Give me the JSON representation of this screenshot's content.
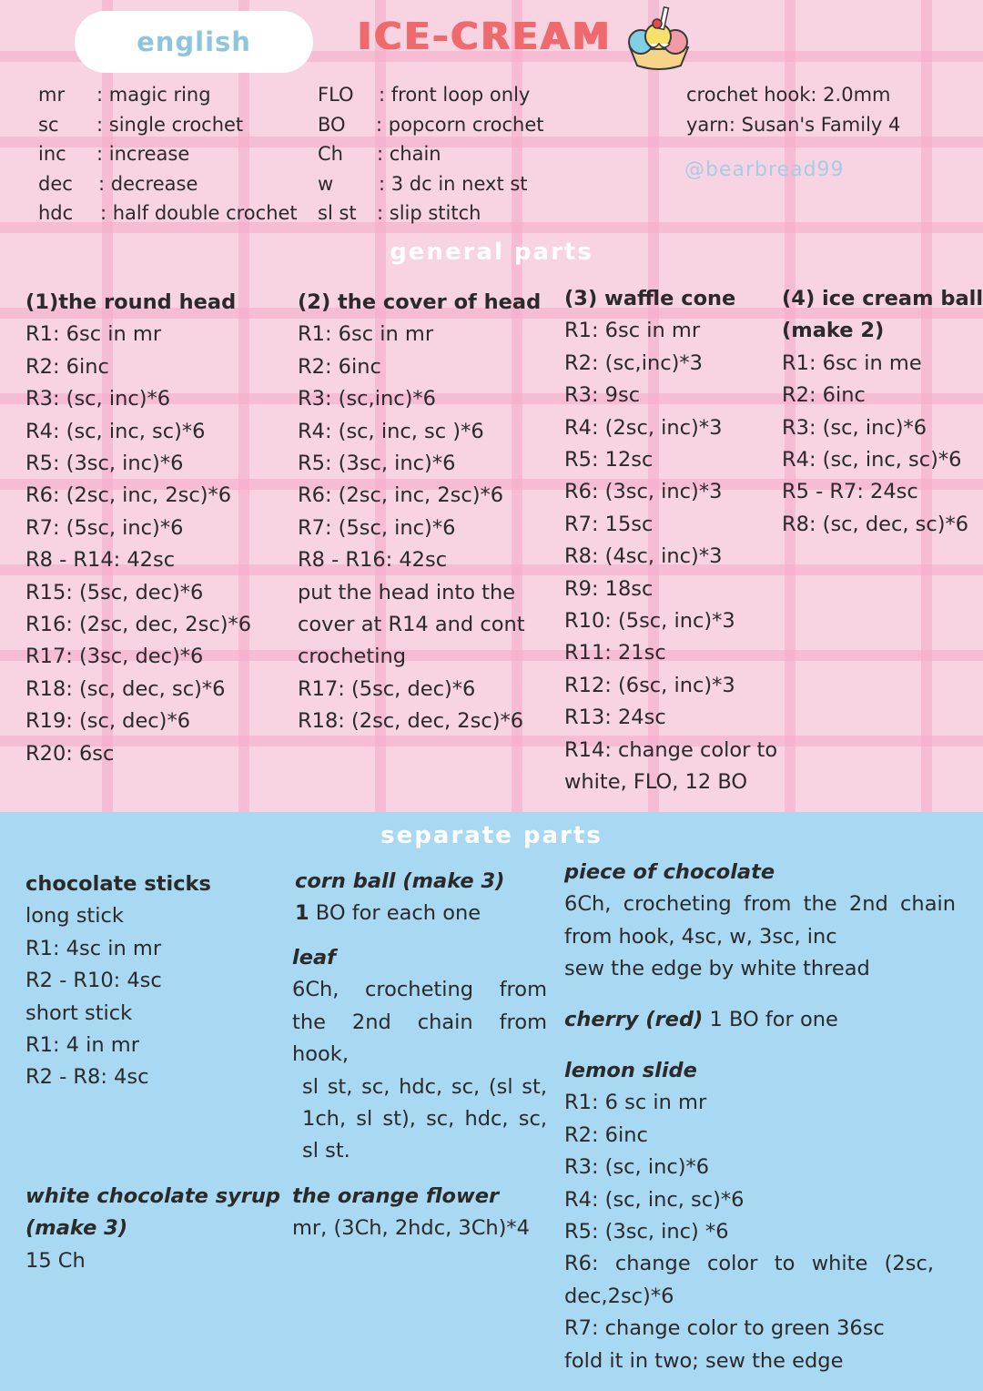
{
  "header": {
    "language": "english",
    "title": "ICE-CREAM",
    "logo_icon": "ice-cream-sundae-icon"
  },
  "abbreviations_left": [
    {
      "key": "mr",
      "value": ": magic ring"
    },
    {
      "key": "sc",
      "value": ": single crochet"
    },
    {
      "key": "inc",
      "value": ": increase"
    },
    {
      "key": "dec",
      "value": ": decrease"
    },
    {
      "key": "hdc",
      "value": ": half double crochet"
    }
  ],
  "abbreviations_right": [
    {
      "key": "FLO",
      "value": ": front loop only"
    },
    {
      "key": "BO",
      "value": ": popcorn crochet"
    },
    {
      "key": "Ch",
      "value": ": chain"
    },
    {
      "key": "w",
      "value": ": 3 dc in next st"
    },
    {
      "key": "sl st",
      "value": ": slip stitch"
    }
  ],
  "info": {
    "hook": "crochet hook: 2.0mm",
    "yarn": "yarn: Susan's Family 4",
    "handle": "@bearbread99"
  },
  "general": {
    "title": "general parts",
    "head": {
      "title": "(1)the round head",
      "rows": [
        "R1: 6sc in mr",
        "R2: 6inc",
        "R3: (sc, inc)*6",
        "R4: (sc, inc, sc)*6",
        "R5: (3sc, inc)*6",
        "R6: (2sc, inc, 2sc)*6",
        "R7: (5sc, inc)*6",
        "R8 - R14: 42sc",
        "R15: (5sc, dec)*6",
        "R16: (2sc, dec, 2sc)*6",
        "R17: (3sc, dec)*6",
        "R18: (sc, dec, sc)*6",
        "R19: (sc, dec)*6",
        "R20: 6sc"
      ]
    },
    "cover": {
      "title": "(2) the cover of head",
      "rows": [
        "R1: 6sc in mr",
        "R2: 6inc",
        "R3: (sc,inc)*6",
        "R4: (sc, inc, sc )*6",
        "R5: (3sc, inc)*6",
        "R6: (2sc, inc, 2sc)*6",
        "R7: (5sc, inc)*6",
        "R8 - R16: 42sc",
        "put the head into the",
        "cover at R14 and cont",
        "crocheting",
        "R17: (5sc, dec)*6",
        "R18: (2sc, dec, 2sc)*6"
      ]
    },
    "cone": {
      "title": "(3) waffle cone",
      "rows": [
        "R1: 6sc in mr",
        "R2: (sc,inc)*3",
        "R3: 9sc",
        "R4: (2sc, inc)*3",
        "R5: 12sc",
        "R6: (3sc, inc)*3",
        "R7: 15sc",
        "R8: (4sc, inc)*3",
        "R9: 18sc",
        "R10: (5sc, inc)*3",
        "R11: 21sc",
        "R12: (6sc, inc)*3",
        "R13: 24sc",
        "R14: change color to",
        "white, FLO, 12 BO"
      ]
    },
    "ball": {
      "title": "(4) ice cream ball",
      "title2": "(make 2)",
      "rows": [
        "R1: 6sc in me",
        "R2: 6inc",
        "R3: (sc, inc)*6",
        "R4: (sc, inc, sc)*6",
        "R5 - R7: 24sc",
        "R8: (sc, dec, sc)*6"
      ]
    }
  },
  "separate": {
    "title": "separate parts",
    "sticks": {
      "title": "chocolate sticks",
      "rows": [
        "long stick",
        "R1: 4sc in mr",
        "R2 - R10: 4sc",
        "short stick",
        "R1: 4 in mr",
        "R2 - R8: 4sc"
      ]
    },
    "syrup": {
      "title": "white chocolate syrup",
      "title2": "(make 3)",
      "rows": [
        "15 Ch"
      ]
    },
    "corn": {
      "title": "corn ball (make 3)",
      "count": "1",
      "text": " BO for each one"
    },
    "leaf": {
      "title": "leaf",
      "line1": "6Ch, crocheting from the 2nd chain from hook,",
      "line2": "sl st, sc, hdc, sc, (sl st, 1ch, sl st), sc, hdc, sc, sl st."
    },
    "flower": {
      "title": "the orange flower",
      "rows": [
        "mr, (3Ch, 2hdc, 3Ch)*4"
      ]
    },
    "chocolate": {
      "title": "piece of chocolate",
      "line1": "6Ch, crocheting from the 2nd chain from hook, 4sc, w, 3sc, inc",
      "line2": "sew the edge by white thread"
    },
    "cherry": {
      "title": "cherry (red)",
      "text": " 1 BO for one"
    },
    "lemon": {
      "title": "lemon slide",
      "rows": [
        "R1: 6 sc in mr",
        "R2: 6inc",
        "R3: (sc, inc)*6",
        "R4: (sc, inc, sc)*6",
        "R5: (3sc, inc) *6"
      ],
      "r6": "R6: change color to white (2sc, dec,2sc)*6",
      "rows2": [
        "R7: change color to green 36sc",
        "fold it in two; sew the edge"
      ]
    }
  }
}
